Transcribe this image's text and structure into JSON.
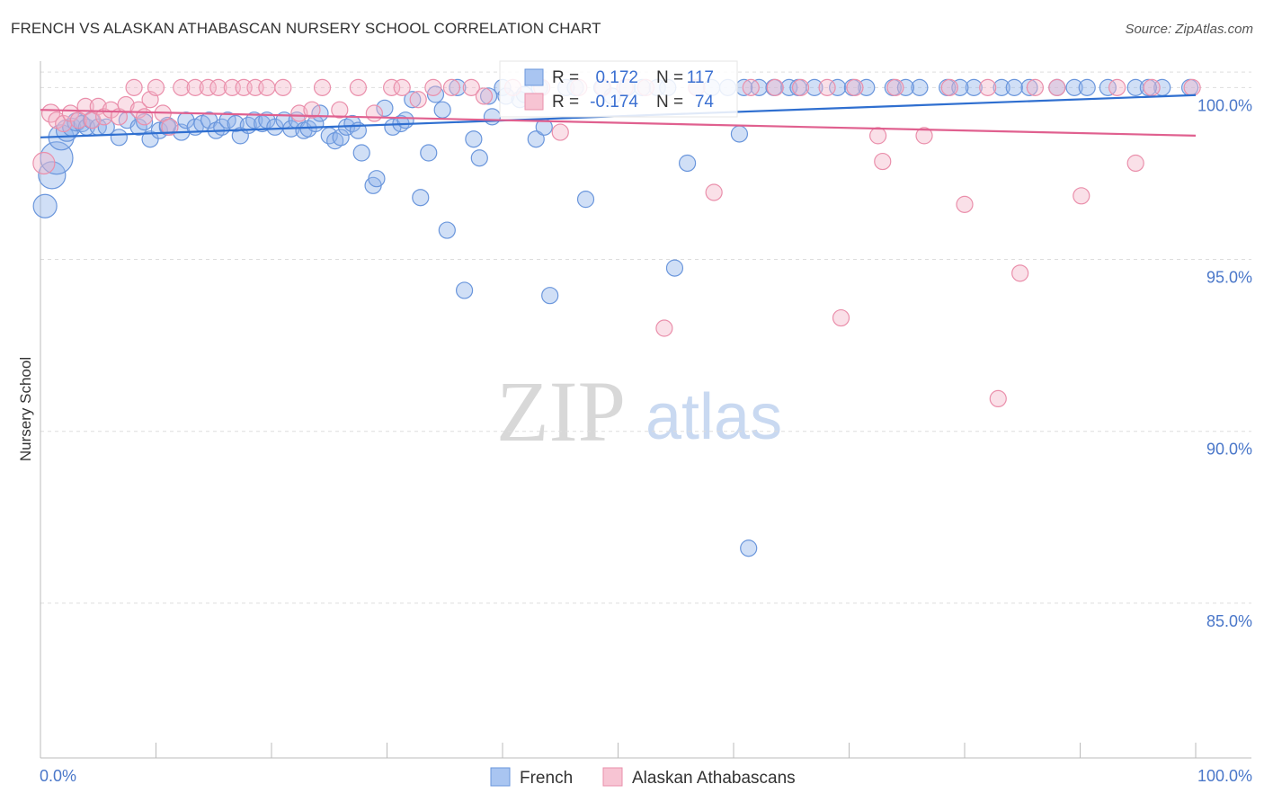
{
  "title": "FRENCH VS ALASKAN ATHABASCAN NURSERY SCHOOL CORRELATION CHART",
  "source": "Source: ZipAtlas.com",
  "chart_data": {
    "type": "scatter",
    "title": "FRENCH VS ALASKAN ATHABASCAN NURSERY SCHOOL CORRELATION CHART",
    "xlabel": "",
    "ylabel": "Nursery School",
    "xlim": [
      0,
      100
    ],
    "ylim": [
      80.5,
      101.5
    ],
    "x_tick_labels": [
      "0.0%",
      "100.0%"
    ],
    "y_ticks": [
      85,
      90,
      95,
      100
    ],
    "y_tick_labels": [
      "85.0%",
      "90.0%",
      "95.0%",
      "100.0%"
    ],
    "watermark": [
      "ZIP",
      "atlas"
    ],
    "legend_stats": [
      {
        "r_label": "R =",
        "r_value": "0.172",
        "n_label": "N =",
        "n_value": "117"
      },
      {
        "r_label": "R =",
        "r_value": "-0.174",
        "n_label": "N =",
        "n_value": "74"
      }
    ],
    "series": [
      {
        "name": "French",
        "color": "#8fb3ea",
        "stroke": "#6a96dc",
        "trend_color": "#2f6fd0",
        "trend": [
          [
            0,
            98.55
          ],
          [
            100,
            99.78
          ]
        ],
        "points": [
          [
            0.4,
            96.55,
            13
          ],
          [
            1.0,
            97.45,
            15
          ],
          [
            1.4,
            97.95,
            18
          ],
          [
            1.8,
            98.55,
            14
          ],
          [
            2.3,
            98.75,
            12
          ],
          [
            2.7,
            98.85,
            10
          ],
          [
            3.1,
            99.0,
            10
          ],
          [
            3.6,
            98.95,
            9
          ],
          [
            4.0,
            98.85,
            9
          ],
          [
            4.4,
            99.05,
            9
          ],
          [
            5.0,
            98.85,
            9
          ],
          [
            5.7,
            98.85,
            9
          ],
          [
            6.8,
            98.55,
            9
          ],
          [
            7.5,
            99.05,
            9
          ],
          [
            8.5,
            98.85,
            9
          ],
          [
            9.0,
            99.0,
            9
          ],
          [
            9.5,
            98.5,
            9
          ],
          [
            10.3,
            98.75,
            9
          ],
          [
            11.0,
            98.85,
            9
          ],
          [
            11.0,
            98.9,
            9
          ],
          [
            12.2,
            98.7,
            9
          ],
          [
            12.6,
            99.05,
            9
          ],
          [
            13.4,
            98.85,
            9
          ],
          [
            14.0,
            98.95,
            9
          ],
          [
            14.6,
            99.05,
            9
          ],
          [
            15.2,
            98.75,
            9
          ],
          [
            15.7,
            98.85,
            9
          ],
          [
            16.2,
            99.05,
            9
          ],
          [
            16.9,
            98.95,
            9
          ],
          [
            17.3,
            98.6,
            9
          ],
          [
            18.0,
            98.9,
            9
          ],
          [
            18.5,
            99.05,
            9
          ],
          [
            19.2,
            98.95,
            9
          ],
          [
            19.6,
            99.05,
            9
          ],
          [
            20.3,
            98.85,
            9
          ],
          [
            21.1,
            99.05,
            9
          ],
          [
            21.7,
            98.8,
            9
          ],
          [
            22.2,
            99.05,
            9
          ],
          [
            22.8,
            98.75,
            9
          ],
          [
            23.2,
            98.8,
            9
          ],
          [
            23.8,
            98.95,
            9
          ],
          [
            24.2,
            99.25,
            9
          ],
          [
            25.0,
            98.6,
            9
          ],
          [
            25.5,
            98.45,
            9
          ],
          [
            26.0,
            98.55,
            9
          ],
          [
            26.5,
            98.85,
            9
          ],
          [
            27.0,
            98.95,
            9
          ],
          [
            27.5,
            98.75,
            9
          ],
          [
            27.8,
            98.1,
            9
          ],
          [
            28.8,
            97.15,
            9
          ],
          [
            29.1,
            97.35,
            9
          ],
          [
            29.8,
            99.4,
            9
          ],
          [
            30.5,
            98.85,
            9
          ],
          [
            31.2,
            98.95,
            9
          ],
          [
            31.6,
            99.05,
            9
          ],
          [
            32.2,
            99.65,
            9
          ],
          [
            32.9,
            96.8,
            9
          ],
          [
            33.6,
            98.1,
            9
          ],
          [
            34.2,
            99.8,
            9
          ],
          [
            34.8,
            99.35,
            9
          ],
          [
            35.2,
            95.85,
            9
          ],
          [
            36.1,
            100.0,
            9
          ],
          [
            36.7,
            94.1,
            9
          ],
          [
            37.5,
            98.5,
            9
          ],
          [
            38.0,
            97.95,
            9
          ],
          [
            38.8,
            99.75,
            9
          ],
          [
            39.1,
            99.15,
            9
          ],
          [
            40.0,
            100.0,
            9
          ],
          [
            40.3,
            99.75,
            9
          ],
          [
            41.5,
            99.65,
            9
          ],
          [
            41.9,
            99.8,
            9
          ],
          [
            42.9,
            98.5,
            9
          ],
          [
            43.2,
            100.0,
            9
          ],
          [
            43.6,
            98.85,
            9
          ],
          [
            44.1,
            93.95,
            9
          ],
          [
            45.5,
            100.0,
            9
          ],
          [
            46.3,
            100.0,
            9
          ],
          [
            47.2,
            96.75,
            9
          ],
          [
            48.6,
            100.0,
            9
          ],
          [
            49.5,
            99.75,
            9
          ],
          [
            50.8,
            100.0,
            9
          ],
          [
            52.1,
            100.0,
            9
          ],
          [
            53.4,
            100.0,
            9
          ],
          [
            54.3,
            100.0,
            9
          ],
          [
            54.9,
            94.75,
            9
          ],
          [
            56.0,
            97.8,
            9
          ],
          [
            56.8,
            100.0,
            9
          ],
          [
            58.1,
            100.0,
            9
          ],
          [
            59.5,
            100.0,
            9
          ],
          [
            60.5,
            98.65,
            9
          ],
          [
            61.3,
            86.6,
            9
          ],
          [
            62.2,
            100.0,
            9
          ],
          [
            63.5,
            100.0,
            9
          ],
          [
            64.8,
            100.0,
            9
          ],
          [
            67.0,
            100.0,
            9
          ],
          [
            69.0,
            100.0,
            9
          ],
          [
            71.5,
            100.0,
            9
          ],
          [
            73.8,
            100.0,
            9
          ],
          [
            76.1,
            100.0,
            9
          ],
          [
            78.5,
            100.0,
            9
          ],
          [
            80.8,
            100.0,
            9
          ],
          [
            83.2,
            100.0,
            9
          ],
          [
            85.6,
            100.0,
            9
          ],
          [
            88.0,
            100.0,
            9
          ],
          [
            89.5,
            100.0,
            9
          ],
          [
            92.4,
            100.0,
            9
          ],
          [
            94.8,
            100.0,
            9
          ],
          [
            97.1,
            100.0,
            9
          ],
          [
            99.5,
            100.0,
            9
          ],
          [
            60.9,
            100.0,
            9
          ],
          [
            65.6,
            100.0,
            9
          ],
          [
            70.3,
            100.0,
            9
          ],
          [
            74.9,
            100.0,
            9
          ],
          [
            79.6,
            100.0,
            9
          ],
          [
            84.3,
            100.0,
            9
          ],
          [
            90.6,
            100.0,
            9
          ],
          [
            95.9,
            100.0,
            9
          ]
        ]
      },
      {
        "name": "Alaskan Athabascans",
        "color": "#f4b6c8",
        "stroke": "#ea8fab",
        "trend_color": "#e0608f",
        "trend": [
          [
            0,
            99.35
          ],
          [
            100,
            98.6
          ]
        ],
        "points": [
          [
            0.3,
            97.8,
            12
          ],
          [
            0.9,
            99.25,
            10
          ],
          [
            1.4,
            99.05,
            9
          ],
          [
            2.0,
            98.95,
            9
          ],
          [
            2.6,
            99.25,
            9
          ],
          [
            3.3,
            99.05,
            9
          ],
          [
            3.9,
            99.45,
            9
          ],
          [
            4.5,
            99.05,
            9
          ],
          [
            5.0,
            99.45,
            9
          ],
          [
            5.5,
            99.15,
            9
          ],
          [
            6.1,
            99.35,
            9
          ],
          [
            6.8,
            99.15,
            9
          ],
          [
            7.4,
            99.5,
            9
          ],
          [
            8.1,
            100.0,
            9
          ],
          [
            8.5,
            99.35,
            9
          ],
          [
            9.0,
            99.15,
            9
          ],
          [
            9.5,
            99.65,
            9
          ],
          [
            10.0,
            100.0,
            9
          ],
          [
            10.6,
            99.25,
            9
          ],
          [
            11.2,
            98.85,
            9
          ],
          [
            12.2,
            100.0,
            9
          ],
          [
            13.4,
            100.0,
            9
          ],
          [
            14.5,
            100.0,
            9
          ],
          [
            15.4,
            100.0,
            9
          ],
          [
            16.6,
            100.0,
            9
          ],
          [
            17.6,
            100.0,
            9
          ],
          [
            18.6,
            100.0,
            9
          ],
          [
            19.6,
            100.0,
            9
          ],
          [
            21.0,
            100.0,
            9
          ],
          [
            22.4,
            99.25,
            9
          ],
          [
            23.5,
            99.35,
            9
          ],
          [
            24.4,
            100.0,
            9
          ],
          [
            25.9,
            99.35,
            9
          ],
          [
            27.5,
            100.0,
            9
          ],
          [
            28.9,
            99.25,
            9
          ],
          [
            30.4,
            100.0,
            9
          ],
          [
            31.3,
            100.0,
            9
          ],
          [
            32.7,
            99.65,
            9
          ],
          [
            34.0,
            100.0,
            9
          ],
          [
            35.6,
            100.0,
            9
          ],
          [
            37.3,
            100.0,
            9
          ],
          [
            38.4,
            99.75,
            9
          ],
          [
            40.9,
            100.0,
            9
          ],
          [
            43.4,
            100.0,
            9
          ],
          [
            45.0,
            98.7,
            9
          ],
          [
            46.6,
            100.0,
            9
          ],
          [
            48.7,
            100.0,
            9
          ],
          [
            50.6,
            100.0,
            9
          ],
          [
            52.4,
            100.0,
            9
          ],
          [
            54.0,
            93.0,
            9
          ],
          [
            56.8,
            100.0,
            9
          ],
          [
            58.3,
            96.95,
            9
          ],
          [
            61.5,
            100.0,
            9
          ],
          [
            63.6,
            100.0,
            9
          ],
          [
            65.8,
            100.0,
            9
          ],
          [
            68.1,
            100.0,
            9
          ],
          [
            69.3,
            93.3,
            9
          ],
          [
            70.5,
            100.0,
            9
          ],
          [
            72.5,
            98.6,
            9
          ],
          [
            72.9,
            97.85,
            9
          ],
          [
            74.0,
            100.0,
            9
          ],
          [
            76.5,
            98.6,
            9
          ],
          [
            78.7,
            100.0,
            9
          ],
          [
            80.0,
            96.6,
            9
          ],
          [
            82.0,
            100.0,
            9
          ],
          [
            82.9,
            90.95,
            9
          ],
          [
            84.8,
            94.6,
            9
          ],
          [
            86.1,
            100.0,
            9
          ],
          [
            88.0,
            100.0,
            9
          ],
          [
            90.1,
            96.85,
            9
          ],
          [
            93.2,
            100.0,
            9
          ],
          [
            94.8,
            97.8,
            9
          ],
          [
            96.2,
            100.0,
            9
          ],
          [
            99.7,
            100.0,
            9
          ]
        ]
      }
    ]
  }
}
